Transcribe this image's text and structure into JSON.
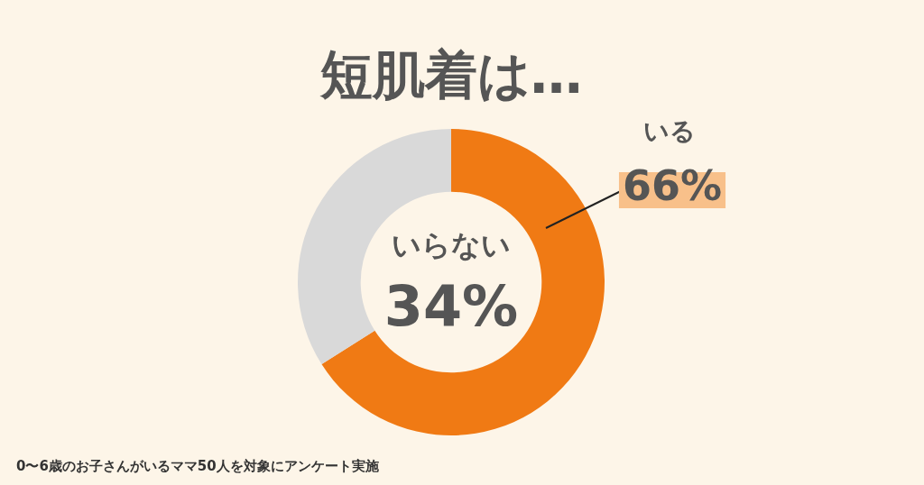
{
  "chart_data": {
    "type": "donut",
    "title": "短肌着は…",
    "categories": [
      "いる",
      "いらない"
    ],
    "values": [
      66,
      34
    ],
    "colors": [
      "#f07a14",
      "#d9d9d9"
    ],
    "value_labels": [
      "66%",
      "34%"
    ],
    "legend": false,
    "annotations": [
      "0〜6歳のお子さんがいるママ50人を対象にアンケート実施"
    ]
  }
}
